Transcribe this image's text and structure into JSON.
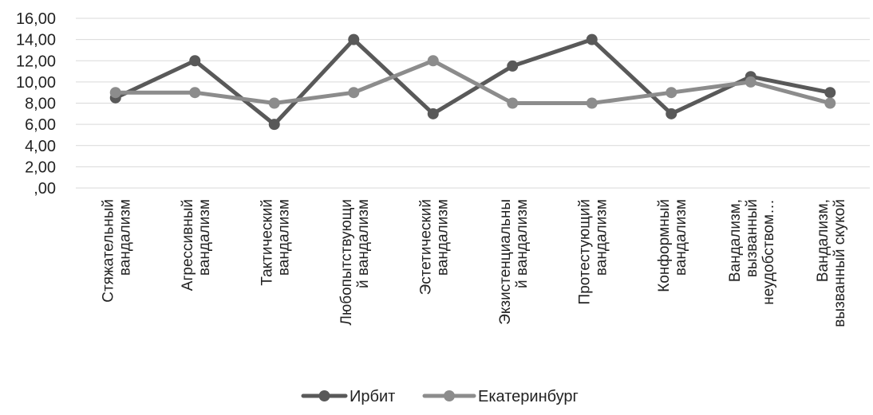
{
  "chart_data": {
    "type": "line",
    "title": "",
    "xlabel": "",
    "ylabel": "",
    "ylim": [
      0,
      16
    ],
    "y_ticks": [
      "16,00",
      "14,00",
      "12,00",
      "10,00",
      "8,00",
      "6,00",
      "4,00",
      "2,00",
      ",00"
    ],
    "y_tick_values": [
      16,
      14,
      12,
      10,
      8,
      6,
      4,
      2,
      0
    ],
    "grid": true,
    "legend_position": "bottom",
    "categories": [
      [
        "Стяжательный",
        "вандализм"
      ],
      [
        "Агрессивный",
        "вандализм"
      ],
      [
        "Тактический",
        "вандализм"
      ],
      [
        "Любопытствующи",
        "й вандализм"
      ],
      [
        "Эстетический",
        "вандализм"
      ],
      [
        "Экзистенциальны",
        "й вандализм"
      ],
      [
        "Протестующий",
        "вандализм"
      ],
      [
        "Конформный",
        "вандализм"
      ],
      [
        "Вандализм,",
        "вызванный",
        "неудобством…"
      ],
      [
        "Вандализм,",
        "вызванный скукой"
      ]
    ],
    "series": [
      {
        "name": "Ирбит",
        "color": "#595959",
        "values": [
          8.5,
          12,
          6,
          14,
          7,
          11.5,
          14,
          7,
          10.5,
          9
        ]
      },
      {
        "name": "Екатеринбург",
        "color": "#8c8c8c",
        "values": [
          9,
          9,
          8,
          9,
          12,
          8,
          8,
          9,
          10,
          8
        ]
      }
    ]
  }
}
